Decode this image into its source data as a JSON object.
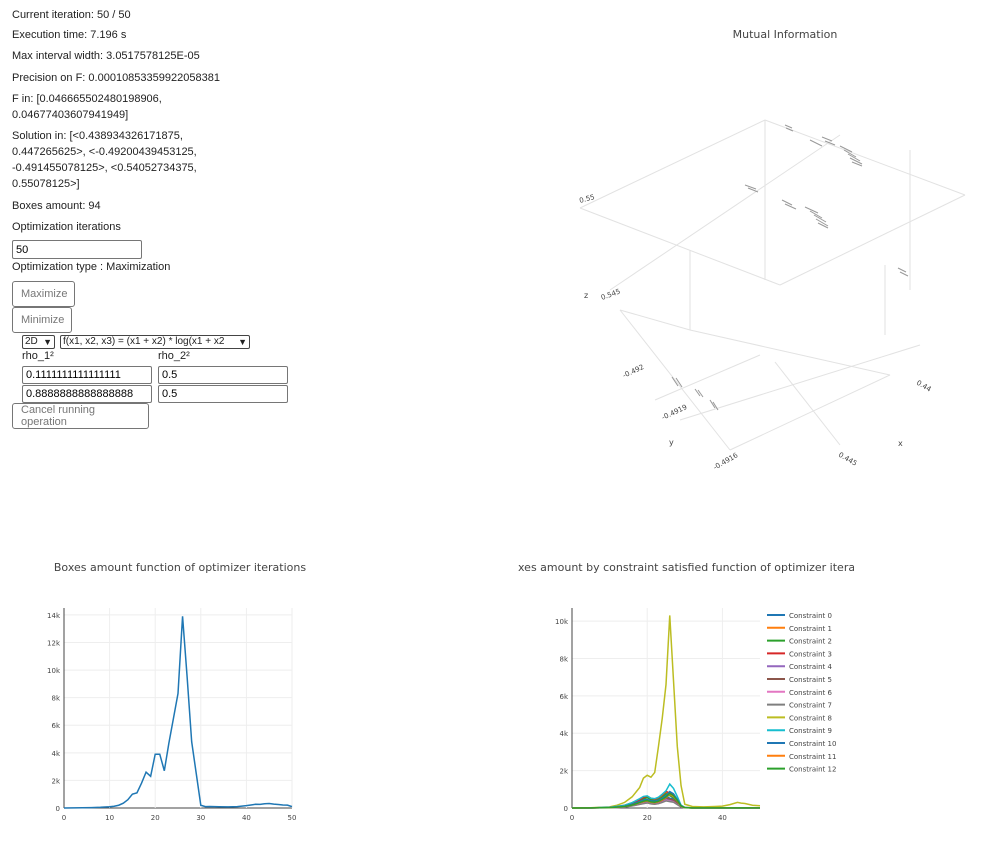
{
  "status": {
    "iteration": "Current iteration: 50 / 50",
    "exec_time": "Execution time: 7.196 s",
    "max_width": "Max interval width: 3.0517578125E-05",
    "precision": "Precision on F: 0.00010853359922058381",
    "f_in_1": "F in: [0.046665502480198906,",
    "f_in_2": "0.04677403607941949]",
    "sol_1": "Solution in: [<0.438934326171875,",
    "sol_2": "0.447265625>, <-0.49200439453125,",
    "sol_3": "-0.491455078125>, <0.54052734375,",
    "sol_4": "0.55078125>]",
    "boxes": "Boxes amount: 94"
  },
  "form": {
    "opt_iter_label": "Optimization iterations",
    "opt_iter_value": "50",
    "opt_type": "Optimization type : Maximization",
    "maximize": "Maximize",
    "minimize": "Minimize",
    "dim_select": "2D",
    "func_select": "f(x1, x2, x3) = (x1 + x2) * log(x1 + x2",
    "rho1_label": "rho_1²",
    "rho2_label": "rho_2²",
    "rho1_a": "0.1111111111111111",
    "rho1_b": "0.8888888888888888",
    "rho2_a": "0.5",
    "rho2_b": "0.5",
    "cancel": "Cancel running operation"
  },
  "plot3d": {
    "title": "Mutual Information",
    "z_label": "z",
    "y_label": "y",
    "x_label": "x",
    "z_ticks": [
      "0.55",
      "0.545"
    ],
    "y_ticks": [
      "-0.492",
      "-0.4919",
      "-0.4916"
    ],
    "x_ticks": [
      "0.44",
      "0.445"
    ]
  },
  "colors": {
    "line_blue": "#1f77b4",
    "palette": [
      "#1f77b4",
      "#ff7f0e",
      "#2ca02c",
      "#d62728",
      "#9467bd",
      "#8c564b",
      "#e377c2",
      "#7f7f7f",
      "#bcbd22",
      "#17becf",
      "#1f77b4",
      "#ff7f0e",
      "#2ca02c"
    ]
  },
  "chart_data": [
    {
      "type": "line",
      "title": "Boxes amount function of optimizer iterations",
      "xlim": [
        0,
        50
      ],
      "ylim": [
        0,
        14500
      ],
      "x_ticks": [
        "0",
        "10",
        "20",
        "30",
        "40",
        "50"
      ],
      "y_ticks": [
        "0",
        "2k",
        "4k",
        "6k",
        "8k",
        "10k",
        "12k",
        "14k"
      ],
      "x": [
        0,
        2,
        4,
        6,
        8,
        10,
        11,
        12,
        13,
        14,
        15,
        16,
        17,
        18,
        19,
        20,
        21,
        22,
        23,
        24,
        25,
        26,
        27,
        28,
        29,
        30,
        31,
        32,
        34,
        36,
        38,
        40,
        41,
        42,
        43,
        44,
        45,
        46,
        47,
        48,
        49,
        50
      ],
      "series": [
        {
          "values": [
            0,
            5,
            20,
            30,
            50,
            90,
            130,
            200,
            350,
            600,
            1000,
            1100,
            1800,
            2600,
            2300,
            3900,
            3900,
            2700,
            4700,
            6500,
            8300,
            13900,
            9500,
            4800,
            2500,
            200,
            100,
            110,
            90,
            80,
            100,
            170,
            220,
            270,
            260,
            310,
            330,
            280,
            250,
            220,
            210,
            100
          ]
        }
      ]
    },
    {
      "type": "line",
      "title": "xes amount by constraint satisfied function of optimizer iteratic",
      "xlim": [
        0,
        50
      ],
      "ylim": [
        0,
        10700
      ],
      "x_ticks": [
        "0",
        "20",
        "40"
      ],
      "y_ticks": [
        "0",
        "2k",
        "4k",
        "6k",
        "8k",
        "10k"
      ],
      "x": [
        0,
        5,
        10,
        12,
        14,
        16,
        18,
        19,
        20,
        21,
        22,
        23,
        24,
        25,
        26,
        27,
        28,
        29,
        30,
        32,
        35,
        38,
        40,
        42,
        44,
        45,
        46,
        48,
        50
      ],
      "series": [
        {
          "name": "Constraint 0",
          "values": [
            0,
            10,
            30,
            60,
            90,
            150,
            260,
            300,
            350,
            280,
            260,
            310,
            420,
            650,
            520,
            500,
            300,
            80,
            20,
            10,
            10,
            10,
            10,
            10,
            10,
            10,
            10,
            10,
            10
          ]
        },
        {
          "name": "Constraint 1",
          "values": [
            0,
            10,
            40,
            90,
            150,
            280,
            420,
            520,
            600,
            480,
            430,
            520,
            640,
            820,
            730,
            550,
            350,
            120,
            30,
            10,
            10,
            10,
            10,
            10,
            10,
            10,
            10,
            10,
            10
          ]
        },
        {
          "name": "Constraint 2",
          "values": [
            0,
            10,
            30,
            60,
            100,
            200,
            380,
            480,
            560,
            440,
            390,
            460,
            580,
            760,
            660,
            560,
            320,
            100,
            20,
            10,
            10,
            10,
            10,
            10,
            10,
            10,
            10,
            10,
            10
          ]
        },
        {
          "name": "Constraint 3",
          "values": [
            0,
            10,
            30,
            70,
            120,
            240,
            450,
            560,
            640,
            520,
            470,
            560,
            700,
            890,
            800,
            700,
            420,
            130,
            30,
            10,
            10,
            10,
            10,
            10,
            10,
            10,
            10,
            10,
            10
          ]
        },
        {
          "name": "Constraint 4",
          "values": [
            0,
            5,
            20,
            40,
            70,
            140,
            240,
            300,
            340,
            280,
            250,
            290,
            380,
            480,
            430,
            400,
            220,
            80,
            20,
            10,
            10,
            10,
            10,
            10,
            10,
            10,
            10,
            10,
            10
          ]
        },
        {
          "name": "Constraint 5",
          "values": [
            0,
            5,
            20,
            40,
            70,
            140,
            250,
            320,
            370,
            290,
            270,
            320,
            410,
            540,
            480,
            430,
            260,
            80,
            20,
            10,
            10,
            10,
            10,
            10,
            10,
            10,
            10,
            10,
            10
          ]
        },
        {
          "name": "Constraint 6",
          "values": [
            0,
            5,
            15,
            30,
            55,
            110,
            200,
            240,
            280,
            230,
            210,
            240,
            310,
            400,
            360,
            330,
            190,
            60,
            15,
            5,
            5,
            5,
            5,
            5,
            5,
            5,
            5,
            5,
            5
          ]
        },
        {
          "name": "Constraint 7",
          "values": [
            0,
            5,
            15,
            30,
            55,
            110,
            190,
            230,
            270,
            220,
            200,
            230,
            300,
            380,
            340,
            310,
            180,
            60,
            15,
            5,
            5,
            5,
            5,
            5,
            5,
            5,
            5,
            5,
            5
          ]
        },
        {
          "name": "Constraint 8",
          "values": [
            0,
            15,
            60,
            150,
            300,
            600,
            1100,
            1600,
            1750,
            1650,
            1900,
            3300,
            4800,
            6600,
            10300,
            6800,
            3300,
            1200,
            200,
            80,
            60,
            80,
            100,
            180,
            300,
            260,
            240,
            150,
            120
          ]
        },
        {
          "name": "Constraint 9",
          "values": [
            0,
            10,
            40,
            90,
            150,
            290,
            500,
            620,
            650,
            520,
            500,
            580,
            740,
            920,
            1280,
            1050,
            620,
            150,
            30,
            10,
            10,
            10,
            10,
            10,
            10,
            10,
            10,
            10,
            10
          ]
        },
        {
          "name": "Constraint 10",
          "values": [
            0,
            10,
            30,
            60,
            100,
            200,
            350,
            420,
            460,
            380,
            360,
            420,
            520,
            660,
            880,
            760,
            460,
            120,
            25,
            10,
            10,
            10,
            10,
            10,
            10,
            10,
            10,
            10,
            10
          ]
        },
        {
          "name": "Constraint 11",
          "values": [
            0,
            5,
            20,
            45,
            80,
            160,
            280,
            340,
            380,
            310,
            290,
            340,
            430,
            560,
            730,
            620,
            380,
            100,
            20,
            10,
            10,
            10,
            10,
            10,
            10,
            10,
            10,
            10,
            10
          ]
        },
        {
          "name": "Constraint 12",
          "values": [
            0,
            5,
            20,
            45,
            80,
            160,
            290,
            360,
            400,
            330,
            310,
            360,
            460,
            590,
            780,
            660,
            400,
            110,
            20,
            10,
            10,
            10,
            10,
            10,
            10,
            10,
            10,
            10,
            10
          ]
        }
      ]
    }
  ]
}
